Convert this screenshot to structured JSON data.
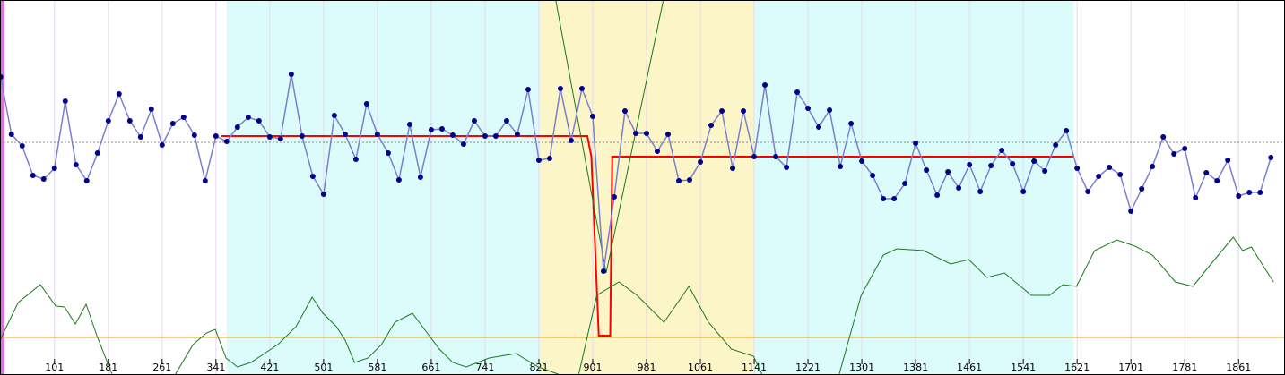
{
  "chart_data": {
    "type": "line",
    "xlim": [
      20,
      1930
    ],
    "ylim": [
      0,
      419
    ],
    "xticks": [
      101,
      181,
      261,
      341,
      421,
      501,
      581,
      661,
      741,
      821,
      901,
      981,
      1061,
      1141,
      1221,
      1301,
      1381,
      1461,
      1541,
      1621,
      1701,
      1781,
      1861
    ],
    "grid": true,
    "bands": [
      {
        "from": 357,
        "to": 823,
        "color": "#dcfcfc"
      },
      {
        "from": 823,
        "to": 1142,
        "color": "#fcf5c8"
      },
      {
        "from": 1142,
        "to": 1616,
        "color": "#dcfcfc"
      }
    ],
    "reference_lines": [
      {
        "value": 260,
        "color": "#888888"
      },
      {
        "value": 42,
        "color": "#e0a000"
      }
    ],
    "series": [
      {
        "color": "#7b7fd0",
        "marker_color": "#00008b",
        "x": [
          21,
          37,
          53,
          69,
          85,
          101,
          117,
          133,
          149,
          165,
          181,
          197,
          213,
          229,
          245,
          261,
          277,
          293,
          309,
          325,
          341,
          357,
          373,
          389,
          405,
          421,
          437,
          453,
          469,
          485,
          501,
          517,
          533,
          549,
          565,
          581,
          597,
          613,
          629,
          645,
          661,
          677,
          693,
          709,
          725,
          741,
          757,
          773,
          789,
          805,
          821,
          837,
          853,
          869,
          885,
          901,
          917,
          933,
          949,
          965,
          981,
          997,
          1013,
          1029,
          1045,
          1061,
          1077,
          1093,
          1109,
          1125,
          1141,
          1157,
          1173,
          1189,
          1205,
          1221,
          1237,
          1253,
          1269,
          1285,
          1301,
          1317,
          1333,
          1349,
          1365,
          1381,
          1397,
          1413,
          1429,
          1445,
          1461,
          1477,
          1493,
          1509,
          1525,
          1541,
          1557,
          1573,
          1589,
          1605,
          1621,
          1637,
          1653,
          1669,
          1685,
          1701,
          1717,
          1733,
          1749,
          1765,
          1781,
          1797,
          1813,
          1829,
          1845,
          1861,
          1877,
          1893,
          1909
        ],
        "values": [
          333,
          269,
          256,
          223,
          219,
          231,
          306,
          235,
          217,
          248,
          284,
          314,
          284,
          266,
          297,
          257,
          281,
          288,
          268,
          217,
          267,
          261,
          277,
          288,
          284,
          266,
          264,
          336,
          267,
          222,
          202,
          290,
          269,
          241,
          303,
          269,
          248,
          218,
          280,
          221,
          274,
          275,
          268,
          258,
          284,
          267,
          267,
          284,
          269,
          319,
          240,
          242,
          320,
          262,
          320,
          289,
          116,
          199,
          295,
          270,
          270,
          250,
          269,
          217,
          218,
          238,
          279,
          295,
          231,
          295,
          244,
          324,
          244,
          232,
          316,
          298,
          277,
          296,
          233,
          281,
          239,
          223,
          197,
          197,
          214,
          259,
          229,
          201,
          227,
          209,
          235,
          205,
          234,
          251,
          236,
          205,
          239,
          228,
          257,
          273,
          231,
          205,
          222,
          232,
          224,
          183,
          208,
          233,
          266,
          247,
          253,
          198,
          226,
          217,
          240,
          200,
          204,
          204,
          243
        ]
      },
      {
        "color": "#ff0000",
        "x": [
          349,
          893,
          899,
          910,
          927,
          930,
          1616
        ],
        "values": [
          267,
          267,
          244,
          44,
          44,
          244,
          244
        ]
      },
      {
        "color": "#1a7a1a",
        "x": [
          846,
          921,
          1006
        ],
        "values": [
          419,
          114,
          419
        ]
      },
      {
        "color": "#1a7a1a",
        "x": [
          20,
          47,
          80,
          103,
          116,
          132,
          148,
          164,
          187,
          220,
          280,
          307,
          327,
          340,
          356,
          373,
          393,
          413,
          433,
          460,
          484,
          500,
          520,
          533,
          547,
          567,
          587,
          607,
          633,
          653,
          673,
          693,
          713,
          747,
          787,
          820,
          853,
          866,
          880,
          907,
          940,
          967,
          1007,
          1044,
          1073,
          1107,
          1140,
          1153,
          1200,
          1267,
          1300,
          1333,
          1353,
          1393,
          1433,
          1460,
          1487,
          1513,
          1553,
          1580,
          1600,
          1620,
          1647,
          1680,
          1707,
          1733,
          1767,
          1793,
          1820,
          1853,
          1867,
          1880,
          1900,
          1913
        ],
        "values": [
          39,
          81,
          101,
          77,
          76,
          57,
          79,
          44,
          0,
          null,
          0,
          34,
          47,
          51,
          19,
          9,
          14,
          24,
          34,
          54,
          87,
          69,
          54,
          39,
          14,
          19,
          34,
          59,
          69,
          49,
          29,
          14,
          9,
          19,
          24,
          9,
          0,
          null,
          0,
          89,
          104,
          89,
          59,
          99,
          59,
          29,
          21,
          0,
          null,
          0,
          89,
          134,
          141,
          139,
          124,
          129,
          109,
          114,
          89,
          89,
          101,
          99,
          139,
          151,
          144,
          134,
          104,
          99,
          124,
          154,
          139,
          143,
          119,
          104
        ]
      }
    ]
  }
}
